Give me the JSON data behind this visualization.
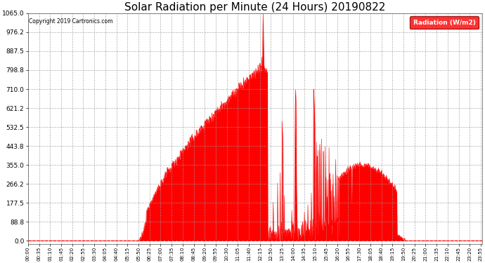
{
  "title": "Solar Radiation per Minute (24 Hours) 20190822",
  "copyright": "Copyright 2019 Cartronics.com",
  "legend_label": "Radiation (W/m2)",
  "y_ticks": [
    0.0,
    88.8,
    177.5,
    266.2,
    355.0,
    443.8,
    532.5,
    621.2,
    710.0,
    798.8,
    887.5,
    976.2,
    1065.0
  ],
  "y_max": 1065.0,
  "y_min": 0.0,
  "fill_color": "#FF0000",
  "line_color": "#FF0000",
  "background_color": "#FFFFFF",
  "grid_color": "#AAAAAA",
  "title_fontsize": 11,
  "legend_bg": "#FF0000",
  "legend_text_color": "#FFFFFF",
  "sunrise_min": 350,
  "sunset_min": 1195,
  "peak_min": 745,
  "peak_val": 1065.0
}
